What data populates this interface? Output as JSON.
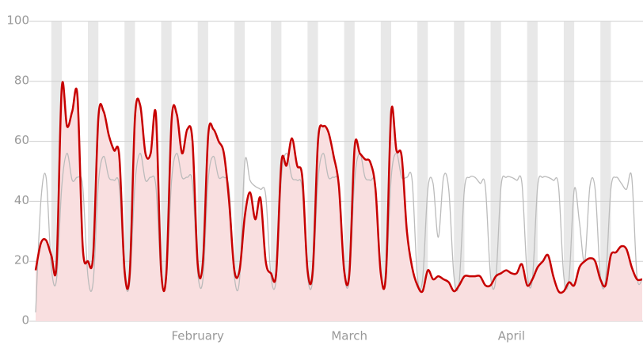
{
  "chart_data": {
    "type": "line",
    "categories": [
      null,
      null,
      null,
      null,
      null,
      null,
      null,
      null,
      null,
      null,
      null,
      null,
      null,
      null,
      null,
      null,
      null,
      null,
      null,
      null,
      null,
      null,
      null,
      null,
      null,
      null,
      null,
      null,
      null,
      null,
      null,
      "February",
      null,
      null,
      null,
      null,
      null,
      null,
      null,
      null,
      null,
      null,
      null,
      null,
      null,
      null,
      null,
      null,
      null,
      null,
      null,
      null,
      null,
      null,
      null,
      null,
      null,
      null,
      null,
      null,
      "March",
      null,
      null,
      null,
      null,
      null,
      null,
      null,
      null,
      null,
      null,
      null,
      null,
      null,
      null,
      null,
      null,
      null,
      null,
      null,
      null,
      null,
      null,
      null,
      null,
      null,
      null,
      null,
      null,
      null,
      null,
      "April",
      null,
      null,
      null,
      null,
      null,
      null,
      null,
      null,
      null,
      null,
      null,
      null,
      null,
      null,
      null,
      null,
      null,
      null,
      null,
      null,
      null,
      null,
      null,
      null,
      null
    ],
    "series": [
      {
        "color": "#bbbbbb",
        "values": [
          3,
          40,
          48,
          18,
          14,
          45,
          56,
          47,
          48,
          45,
          15,
          13,
          46,
          55,
          48,
          47,
          45,
          15,
          13,
          46,
          56,
          47,
          48,
          45,
          15,
          14,
          47,
          56,
          48,
          48,
          46,
          16,
          14,
          47,
          55,
          48,
          48,
          44,
          15,
          14,
          53,
          47,
          45,
          44,
          42,
          15,
          14,
          48,
          56,
          48,
          47,
          44,
          15,
          14,
          47,
          56,
          48,
          48,
          45,
          16,
          14,
          47,
          56,
          48,
          47,
          45,
          16,
          14,
          48,
          56,
          48,
          48,
          47,
          15,
          14,
          44,
          46,
          28,
          48,
          44,
          15,
          13,
          44,
          48,
          48,
          46,
          45,
          15,
          14,
          45,
          48,
          48,
          47,
          46,
          16,
          14,
          45,
          48,
          48,
          47,
          45,
          15,
          14,
          44,
          33,
          20,
          45,
          44,
          15,
          14,
          44,
          48,
          46,
          44,
          48,
          15,
          14
        ]
      },
      {
        "color": "#c70000",
        "fill": "#f9dfe0",
        "values": [
          17,
          26,
          27,
          22,
          19,
          78,
          65,
          70,
          75,
          25,
          20,
          22,
          68,
          70,
          62,
          57,
          55,
          17,
          16,
          68,
          72,
          56,
          56,
          69,
          17,
          16,
          67,
          69,
          56,
          64,
          60,
          19,
          20,
          62,
          64,
          60,
          56,
          40,
          17,
          17,
          35,
          43,
          34,
          41,
          20,
          16,
          16,
          53,
          52,
          61,
          52,
          48,
          17,
          17,
          60,
          65,
          63,
          55,
          45,
          17,
          16,
          58,
          56,
          54,
          53,
          44,
          16,
          16,
          70,
          57,
          55,
          30,
          18,
          12,
          10,
          17,
          14,
          15,
          14,
          13,
          10,
          12,
          15,
          15,
          15,
          15,
          12,
          12,
          15,
          16,
          17,
          16,
          16,
          19,
          12,
          14,
          18,
          20,
          22,
          15,
          10,
          10,
          13,
          12,
          18,
          20,
          21,
          20,
          14,
          12,
          22,
          23,
          25,
          24,
          18,
          14,
          14
        ]
      }
    ],
    "shaded_ranges": [
      [
        3,
        5
      ],
      [
        10,
        12
      ],
      [
        17,
        19
      ],
      [
        24,
        26
      ],
      [
        31,
        33
      ],
      [
        38,
        40
      ],
      [
        45,
        47
      ],
      [
        52,
        54
      ],
      [
        59,
        61
      ],
      [
        66,
        68
      ],
      [
        73,
        75
      ],
      [
        80,
        82
      ],
      [
        87,
        89
      ],
      [
        94,
        96
      ],
      [
        101,
        103
      ],
      [
        108,
        110
      ]
    ],
    "shade_color": "#e8e8e8",
    "ylim": [
      0,
      100
    ],
    "yticks": [
      0,
      20,
      40,
      60,
      80,
      100
    ],
    "grid": true
  }
}
